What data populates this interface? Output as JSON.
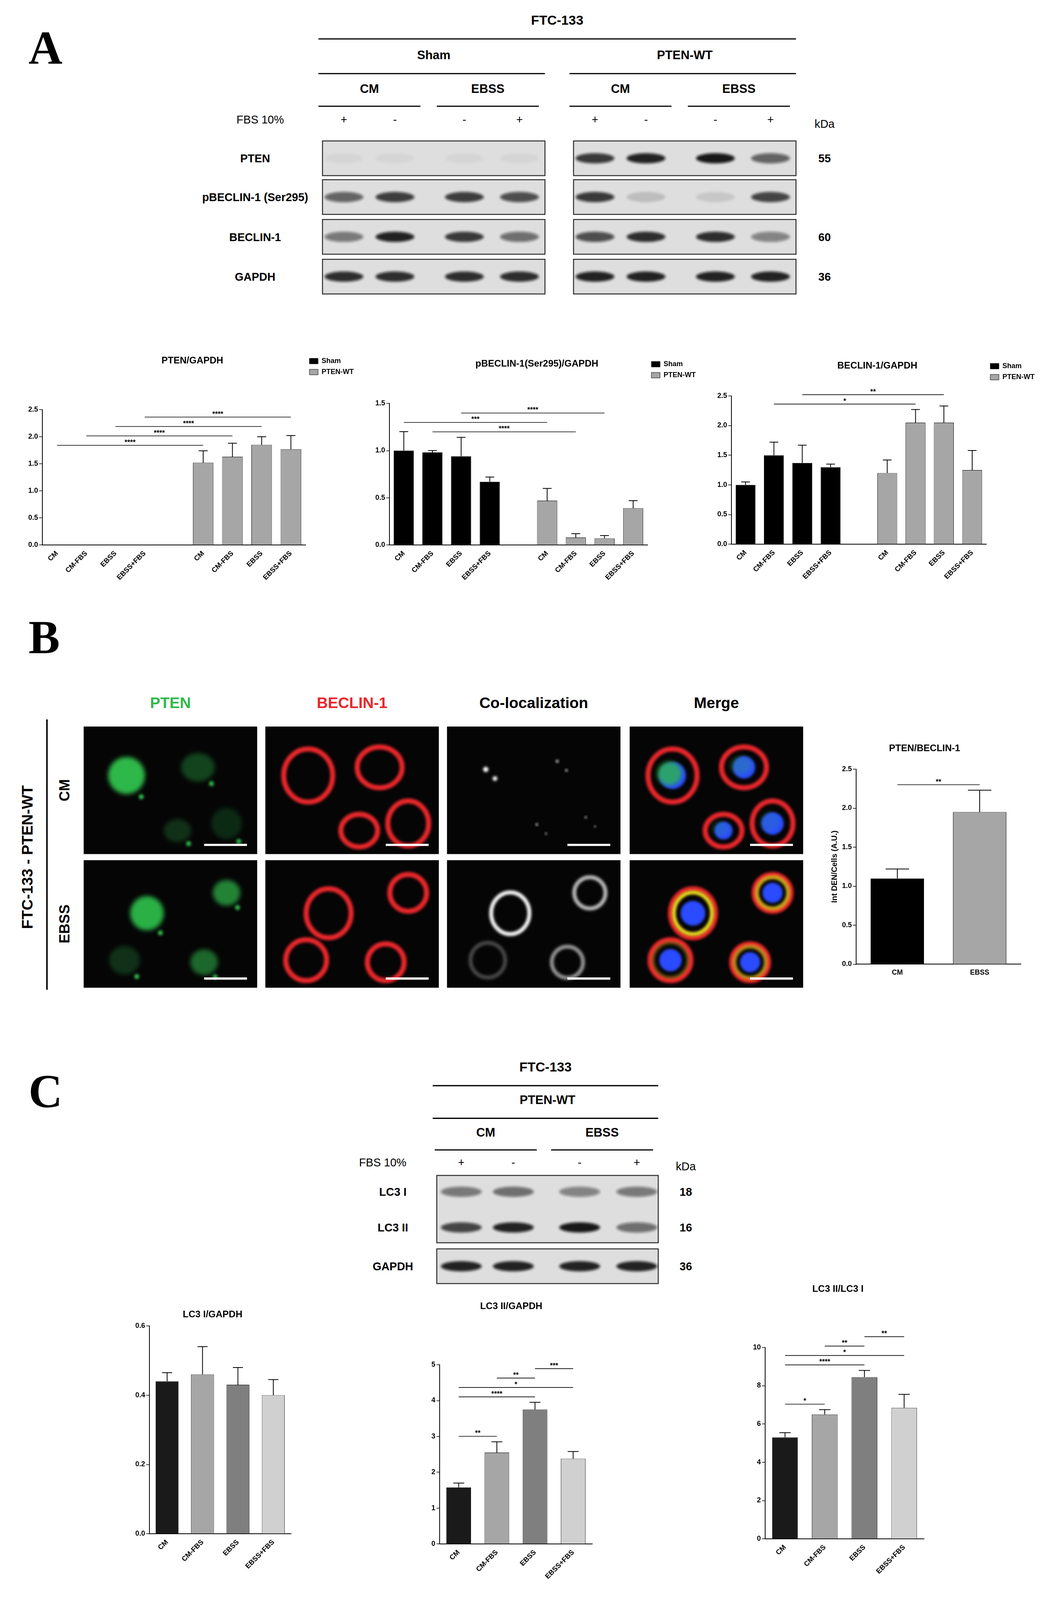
{
  "panel_labels": [
    "A",
    "B",
    "C"
  ],
  "blots": [
    {
      "title": "FTC-133",
      "fbs_label": "FBS 10%",
      "kda_label": "kDa",
      "groups": [
        {
          "name": "Sham",
          "conditions": [
            {
              "name": "CM",
              "fbs": [
                "+",
                "-"
              ]
            },
            {
              "name": "EBSS",
              "fbs": [
                "-",
                "+"
              ]
            }
          ]
        },
        {
          "name": "PTEN-WT",
          "conditions": [
            {
              "name": "CM",
              "fbs": [
                "+",
                "-"
              ]
            },
            {
              "name": "EBSS",
              "fbs": [
                "-",
                "+"
              ]
            }
          ]
        }
      ],
      "rows": [
        {
          "name": "PTEN",
          "kda": 55,
          "bands": [
            0.04,
            0.04,
            0.04,
            0.04,
            0.8,
            0.9,
            0.95,
            0.6
          ]
        },
        {
          "name": "pBECLIN-1 (Ser295)",
          "bands": [
            0.6,
            0.78,
            0.78,
            0.7,
            0.8,
            0.15,
            0.1,
            0.75
          ]
        },
        {
          "name": "BECLIN-1",
          "kda": 60,
          "bands": [
            0.5,
            0.9,
            0.8,
            0.55,
            0.7,
            0.85,
            0.85,
            0.45
          ]
        },
        {
          "name": "GAPDH",
          "kda": 36,
          "bands": [
            0.85,
            0.85,
            0.85,
            0.85,
            0.9,
            0.9,
            0.9,
            0.9
          ]
        }
      ]
    },
    {
      "title": "FTC-133",
      "fbs_label": "FBS 10%",
      "kda_label": "kDa",
      "groups": [
        {
          "name": "PTEN-WT",
          "conditions": [
            {
              "name": "CM",
              "fbs": [
                "+",
                "-"
              ]
            },
            {
              "name": "EBSS",
              "fbs": [
                "-",
                "+"
              ]
            }
          ]
        }
      ],
      "rows": [
        {
          "name": "LC3 I",
          "kda": 18,
          "bands": [
            0.5,
            0.55,
            0.45,
            0.5
          ]
        },
        {
          "name": "LC3 II",
          "kda": 16,
          "bands": [
            0.75,
            0.9,
            0.95,
            0.55
          ]
        },
        {
          "name": "GAPDH",
          "kda": 36,
          "bands": [
            0.9,
            0.9,
            0.9,
            0.9
          ]
        }
      ]
    }
  ],
  "images": {
    "side_label": "FTC-133 - PTEN-WT",
    "rows": [
      "CM",
      "EBSS"
    ],
    "columns": [
      {
        "name": "PTEN",
        "color": "#2db84a"
      },
      {
        "name": "BECLIN-1",
        "color": "#e8262b"
      },
      {
        "name": "Co-localization",
        "color": "#000000"
      },
      {
        "name": "Merge",
        "color": "#000000"
      }
    ]
  },
  "chart_data": [
    {
      "type": "bar",
      "title": "PTEN/GAPDH",
      "categories": [
        "CM",
        "CM-FBS",
        "EBSS",
        "EBSS+FBS",
        null,
        "CM",
        "CM-FBS",
        "EBSS",
        "EBSS+FBS"
      ],
      "series": [
        {
          "name": "Sham",
          "color": "#000000",
          "values": [
            0,
            0,
            0,
            0,
            null,
            null,
            null,
            null,
            null
          ]
        },
        {
          "name": "PTEN-WT",
          "color": "#a6a6a6",
          "values": [
            null,
            null,
            null,
            null,
            null,
            1.52,
            1.63,
            1.85,
            1.77
          ],
          "error": [
            null,
            null,
            null,
            null,
            null,
            0.22,
            0.25,
            0.15,
            0.25
          ]
        }
      ],
      "ylim": [
        0,
        2.5
      ],
      "yticks": [
        {
          "value": 0,
          "label": "0.0"
        },
        0.5,
        {
          "value": 1,
          "label": "1.0"
        },
        1.5,
        {
          "value": 2,
          "label": "2.0"
        },
        2.5
      ],
      "grid": false,
      "legend": "right",
      "comparisons": [
        {
          "from": 0,
          "to": 5,
          "label": "****"
        },
        {
          "from": 1,
          "to": 6,
          "label": "****"
        },
        {
          "from": 2,
          "to": 7,
          "label": "****"
        },
        {
          "from": 3,
          "to": 8,
          "label": "****"
        }
      ]
    },
    {
      "type": "bar",
      "title": "pBECLIN-1(Ser295)/GAPDH",
      "categories": [
        "CM",
        "CM-FBS",
        "EBSS",
        "EBSS+FBS",
        null,
        "CM",
        "CM-FBS",
        "EBSS",
        "EBSS+FBS"
      ],
      "series": [
        {
          "name": "Sham",
          "color": "#000000",
          "values": [
            1.0,
            0.98,
            0.94,
            0.67,
            null,
            null,
            null,
            null,
            null
          ],
          "error": [
            0.2,
            0.02,
            0.2,
            0.05,
            null,
            null,
            null,
            null,
            null
          ]
        },
        {
          "name": "PTEN-WT",
          "color": "#a6a6a6",
          "values": [
            null,
            null,
            null,
            null,
            null,
            0.47,
            0.08,
            0.07,
            0.39
          ],
          "error": [
            null,
            null,
            null,
            null,
            null,
            0.13,
            0.04,
            0.03,
            0.08
          ]
        }
      ],
      "ylim": [
        0,
        1.5
      ],
      "yticks": [
        {
          "value": 0,
          "label": "0.0"
        },
        0.5,
        {
          "value": 1,
          "label": "1.0"
        },
        1.5
      ],
      "grid": false,
      "legend": "right",
      "comparisons": [
        {
          "from": 1,
          "to": 6,
          "label": "****"
        },
        {
          "from": 0,
          "to": 5,
          "label": "***"
        },
        {
          "from": 2,
          "to": 7,
          "label": "****"
        }
      ]
    },
    {
      "type": "bar",
      "title": "BECLIN-1/GAPDH",
      "categories": [
        "CM",
        "CM-FBS",
        "EBSS",
        "EBSS+FBS",
        null,
        "CM",
        "CM-FBS",
        "EBSS",
        "EBSS+FBS"
      ],
      "series": [
        {
          "name": "Sham",
          "color": "#000000",
          "values": [
            1.0,
            1.5,
            1.37,
            1.3,
            null,
            null,
            null,
            null,
            null
          ],
          "error": [
            0.05,
            0.22,
            0.3,
            0.05,
            null,
            null,
            null,
            null,
            null
          ]
        },
        {
          "name": "PTEN-WT",
          "color": "#a6a6a6",
          "values": [
            null,
            null,
            null,
            null,
            null,
            1.2,
            2.05,
            2.05,
            1.25
          ],
          "error": [
            null,
            null,
            null,
            null,
            null,
            0.22,
            0.22,
            0.28,
            0.33
          ]
        }
      ],
      "ylim": [
        0,
        2.5
      ],
      "yticks": [
        {
          "value": 0,
          "label": "0.0"
        },
        0.5,
        {
          "value": 1,
          "label": "1.0"
        },
        1.5,
        {
          "value": 2,
          "label": "2.0"
        },
        2.5
      ],
      "grid": false,
      "legend": "right",
      "comparisons": [
        {
          "from": 1,
          "to": 6,
          "label": "*"
        },
        {
          "from": 2,
          "to": 7,
          "label": "**"
        }
      ]
    },
    {
      "type": "bar",
      "title": "PTEN/BECLIN-1",
      "categories": [
        "CM",
        "EBSS"
      ],
      "values": [
        1.1,
        1.95
      ],
      "error": [
        0.12,
        0.28
      ],
      "colors": [
        "#000000",
        "#a6a6a6"
      ],
      "y_label": "Int DEN/Cells (A.U.)",
      "ylim": [
        0,
        2.5
      ],
      "yticks": [
        {
          "value": 0,
          "label": "0.0"
        },
        0.5,
        {
          "value": 1,
          "label": "1.0"
        },
        1.5,
        {
          "value": 2,
          "label": "2.0"
        },
        2.5
      ],
      "grid": false,
      "comparisons": [
        {
          "from": 0,
          "to": 1,
          "label": "**"
        }
      ]
    },
    {
      "type": "bar",
      "title": "LC3 I/GAPDH",
      "categories": [
        "CM",
        "CM-FBS",
        "EBSS",
        "EBSS+FBS"
      ],
      "values": [
        0.44,
        0.46,
        0.43,
        0.4
      ],
      "error": [
        0.025,
        0.08,
        0.05,
        0.045
      ],
      "colors": [
        "#1a1a1a",
        "#a6a6a6",
        "#7f7f7f",
        "#d0d0d0"
      ],
      "ylim": [
        0,
        0.6
      ],
      "yticks": [
        {
          "value": 0,
          "label": "0.0"
        },
        0.2,
        0.4,
        0.6
      ],
      "grid": false,
      "comparisons": []
    },
    {
      "type": "bar",
      "title": "LC3 II/GAPDH",
      "categories": [
        "CM",
        "CM-FBS",
        "EBSS",
        "EBSS+FBS"
      ],
      "values": [
        1.58,
        2.55,
        3.75,
        2.38
      ],
      "error": [
        0.12,
        0.3,
        0.2,
        0.2
      ],
      "colors": [
        "#1a1a1a",
        "#a6a6a6",
        "#7f7f7f",
        "#d0d0d0"
      ],
      "ylim": [
        0,
        5
      ],
      "yticks": [
        0,
        1,
        2,
        3,
        4,
        5
      ],
      "grid": false,
      "comparisons": [
        {
          "from": 0,
          "to": 1,
          "label": "**"
        },
        {
          "from": 0,
          "to": 2,
          "label": "****"
        },
        {
          "from": 0,
          "to": 3,
          "label": "*"
        },
        {
          "from": 1,
          "to": 2,
          "label": "**"
        },
        {
          "from": 2,
          "to": 3,
          "label": "***"
        }
      ]
    },
    {
      "type": "bar",
      "title": "LC3 II/LC3 I",
      "categories": [
        "CM",
        "CM-FBS",
        "EBSS",
        "EBSS+FBS"
      ],
      "values": [
        5.3,
        6.5,
        8.45,
        6.85
      ],
      "error": [
        0.25,
        0.25,
        0.35,
        0.7
      ],
      "colors": [
        "#1a1a1a",
        "#a6a6a6",
        "#7f7f7f",
        "#d0d0d0"
      ],
      "ylim": [
        0,
        10
      ],
      "yticks": [
        0,
        2,
        4,
        6,
        8,
        10
      ],
      "grid": false,
      "comparisons": [
        {
          "from": 0,
          "to": 1,
          "label": "*"
        },
        {
          "from": 0,
          "to": 2,
          "label": "****"
        },
        {
          "from": 0,
          "to": 3,
          "label": "*"
        },
        {
          "from": 1,
          "to": 2,
          "label": "**"
        },
        {
          "from": 2,
          "to": 3,
          "label": "**"
        }
      ]
    }
  ]
}
